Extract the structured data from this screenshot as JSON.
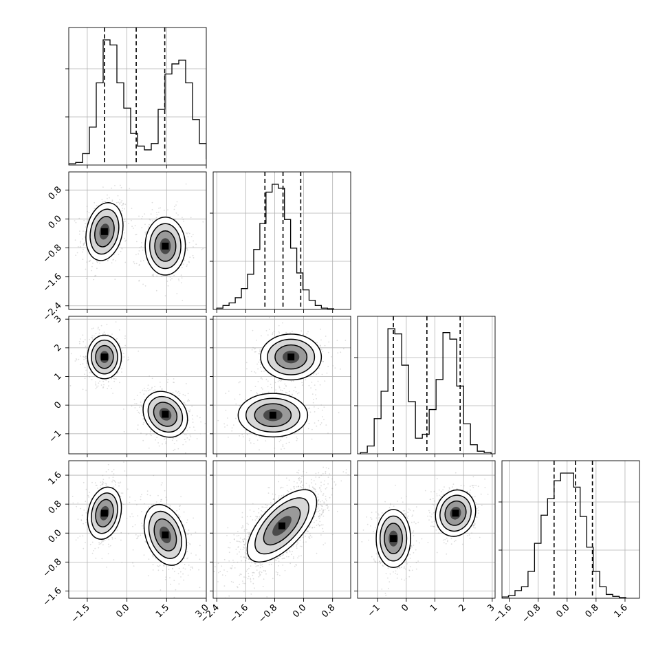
{
  "chart_data": {
    "type": "corner",
    "n_params": 4,
    "grid": true,
    "colors": {
      "contour": "#000000",
      "points": "#9e9e9e",
      "density": "#000000",
      "grid": "#b0b0b0"
    },
    "param_ranges": [
      [
        -2.2,
        3.0
      ],
      [
        -2.5,
        1.3
      ],
      [
        -1.7,
        3.1
      ],
      [
        -1.8,
        2.0
      ]
    ],
    "ticks": {
      "p0": {
        "values": [
          -1.5,
          0.0,
          1.5,
          3.0
        ],
        "labels": [
          "−1.5",
          "0.0",
          "1.5",
          "3.0"
        ]
      },
      "p1": {
        "values": [
          -2.4,
          -1.6,
          -0.8,
          0.0,
          0.8
        ],
        "labels": [
          "−2.4",
          "−1.6",
          "−0.8",
          "0.0",
          "0.8"
        ]
      },
      "p2": {
        "values": [
          -1,
          0,
          1,
          2,
          3
        ],
        "labels": [
          "−1",
          "0",
          "1",
          "2",
          "3"
        ]
      },
      "p3": {
        "values": [
          -1.6,
          -0.8,
          0.0,
          0.8,
          1.6
        ],
        "labels": [
          "−1.6",
          "−0.8",
          "0.0",
          "0.8",
          "1.6"
        ]
      }
    },
    "histograms": [
      {
        "param": "p0",
        "bin_start": -2.2,
        "bin_width": 0.26,
        "counts": [
          0.01,
          0.02,
          0.09,
          0.3,
          0.65,
          0.99,
          0.95,
          0.65,
          0.45,
          0.25,
          0.15,
          0.12,
          0.17,
          0.44,
          0.72,
          0.8,
          0.83,
          0.65,
          0.36,
          0.17,
          0.05,
          0.02
        ],
        "quantiles": [
          -0.85,
          0.35,
          1.43
        ]
      },
      {
        "param": "p1",
        "bin_start": -2.4,
        "bin_width": 0.17,
        "counts": [
          0.01,
          0.03,
          0.05,
          0.09,
          0.16,
          0.27,
          0.46,
          0.66,
          0.9,
          0.96,
          0.93,
          0.69,
          0.47,
          0.28,
          0.15,
          0.07,
          0.03,
          0.01,
          0.005
        ],
        "quantiles": [
          -1.07,
          -0.57,
          -0.08
        ]
      },
      {
        "param": "p2",
        "bin_start": -1.6,
        "bin_width": 0.24,
        "counts": [
          0.01,
          0.06,
          0.27,
          0.48,
          0.96,
          0.92,
          0.68,
          0.4,
          0.12,
          0.15,
          0.34,
          0.57,
          0.93,
          0.88,
          0.52,
          0.23,
          0.07,
          0.02,
          0.01
        ],
        "quantiles": [
          -0.45,
          0.72,
          1.88
        ]
      },
      {
        "param": "p3",
        "bin_start": -1.8,
        "bin_width": 0.18,
        "counts": [
          0.01,
          0.02,
          0.06,
          0.09,
          0.21,
          0.43,
          0.65,
          0.78,
          0.92,
          0.98,
          0.98,
          0.87,
          0.64,
          0.4,
          0.21,
          0.09,
          0.03,
          0.015,
          0.005
        ],
        "quantiles": [
          -0.36,
          0.23,
          0.7
        ]
      }
    ],
    "scatter_modes": {
      "p1_vs_p0": [
        {
          "center": [
            -0.85,
            -0.35
          ],
          "spread": [
            0.35,
            0.4
          ],
          "corr": 0.2,
          "weight": 0.5
        },
        {
          "center": [
            1.45,
            -0.75
          ],
          "spread": [
            0.38,
            0.4
          ],
          "corr": 0.0,
          "weight": 0.5
        }
      ],
      "p2_vs_p0": [
        {
          "center": [
            -0.85,
            1.68
          ],
          "spread": [
            0.32,
            0.38
          ],
          "corr": 0.0,
          "weight": 0.5
        },
        {
          "center": [
            1.45,
            -0.32
          ],
          "spread": [
            0.42,
            0.4
          ],
          "corr": -0.2,
          "weight": 0.5
        }
      ],
      "p2_vs_p1": [
        {
          "center": [
            -0.35,
            1.68
          ],
          "spread": [
            0.42,
            0.4
          ],
          "corr": 0.0,
          "weight": 0.5
        },
        {
          "center": [
            -0.85,
            -0.35
          ],
          "spread": [
            0.48,
            0.38
          ],
          "corr": 0.0,
          "weight": 0.5
        }
      ],
      "p3_vs_p0": [
        {
          "center": [
            -0.85,
            0.55
          ],
          "spread": [
            0.32,
            0.36
          ],
          "corr": 0.2,
          "weight": 0.5
        },
        {
          "center": [
            1.45,
            -0.05
          ],
          "spread": [
            0.4,
            0.42
          ],
          "corr": -0.3,
          "weight": 0.5
        }
      ],
      "p3_vs_p1": [
        {
          "center": [
            -0.6,
            0.2
          ],
          "spread": [
            0.48,
            0.5
          ],
          "corr": 0.65,
          "weight": 1.0
        }
      ],
      "p3_vs_p2": [
        {
          "center": [
            -0.45,
            -0.15
          ],
          "spread": [
            0.3,
            0.4
          ],
          "corr": 0.0,
          "weight": 0.5
        },
        {
          "center": [
            1.72,
            0.55
          ],
          "spread": [
            0.35,
            0.32
          ],
          "corr": 0.1,
          "weight": 0.5
        }
      ]
    }
  }
}
